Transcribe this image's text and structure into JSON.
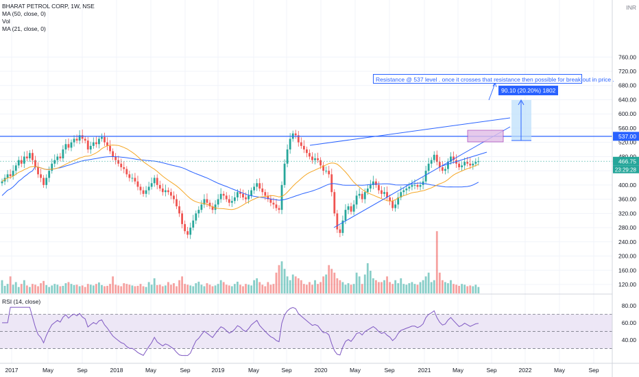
{
  "chart_header": {
    "symbol_line": "BHARAT PETROL CORP, 1W, NSE",
    "ma50_label": "MA (50, close, 0)",
    "vol_label": "Vol",
    "ma21_label": "MA (21, close, 0)",
    "rsi_label": "RSI (14, close)",
    "currency": "INR"
  },
  "annotation": {
    "text": "Resistance @ 537 level . once it crosses that resistance then possible for break out in price .",
    "measure_label": "90.10 (20.20%) 1802"
  },
  "price_labels": {
    "resistance": "537.00",
    "last_price": "466.75",
    "countdown": "23:29:28"
  },
  "colors": {
    "up": "#26a69a",
    "down": "#ef5350",
    "ma50": "#2962ff",
    "ma21": "#f5a623",
    "rsi": "#7e57c2",
    "rsi_band": "#ede7f6",
    "trend": "#2962ff",
    "measure_fill": "#bbdefb",
    "range_box_fill": "#e1bee7",
    "last_price_label": "#26a69a"
  },
  "chart_data": {
    "type": "candlestick",
    "x_axis_labels": [
      "2017",
      "May",
      "Sep",
      "2018",
      "May",
      "Sep",
      "2019",
      "May",
      "Sep",
      "2020",
      "May",
      "Sep",
      "2021",
      "May",
      "Sep",
      "2022",
      "May",
      "Sep"
    ],
    "price_axis": {
      "ticks": [
        120,
        160,
        200,
        240,
        280,
        320,
        360,
        400,
        440,
        480,
        520,
        560,
        600,
        640,
        680,
        720,
        760
      ],
      "ylim": [
        110,
        770
      ]
    },
    "rsi_axis": {
      "ticks": [
        40,
        60,
        80
      ],
      "ylim": [
        15,
        82
      ],
      "band": [
        30,
        70
      ]
    },
    "resistance_level": 537,
    "last_price": 466.75,
    "weekly_close": [
      410,
      420,
      430,
      425,
      440,
      455,
      470,
      460,
      480,
      475,
      490,
      470,
      450,
      430,
      420,
      400,
      420,
      440,
      460,
      470,
      480,
      475,
      500,
      515,
      505,
      520,
      530,
      525,
      540,
      530,
      525,
      500,
      510,
      520,
      515,
      530,
      535,
      520,
      510,
      495,
      480,
      470,
      460,
      450,
      445,
      430,
      420,
      420,
      410,
      395,
      385,
      375,
      385,
      395,
      405,
      420,
      400,
      390,
      380,
      385,
      380,
      370,
      360,
      340,
      320,
      290,
      270,
      260,
      280,
      300,
      320,
      330,
      345,
      360,
      350,
      340,
      330,
      345,
      360,
      375,
      370,
      360,
      350,
      355,
      365,
      380,
      375,
      365,
      360,
      370,
      385,
      395,
      405,
      390,
      380,
      370,
      360,
      350,
      345,
      335,
      330,
      400,
      460,
      500,
      530,
      545,
      540,
      520,
      510,
      500,
      490,
      480,
      470,
      475,
      470,
      455,
      440,
      440,
      430,
      380,
      320,
      275,
      265,
      300,
      330,
      340,
      325,
      345,
      370,
      375,
      360,
      380,
      390,
      400,
      410,
      400,
      385,
      375,
      380,
      365,
      355,
      335,
      345,
      365,
      380,
      385,
      390,
      395,
      400,
      400,
      395,
      400,
      410,
      440,
      460,
      470,
      485,
      465,
      450,
      440,
      445,
      465,
      480,
      470,
      460,
      450,
      455,
      465,
      460,
      455,
      460,
      465,
      466.75
    ],
    "weekly_volume": [
      140,
      125,
      130,
      150,
      128,
      135,
      122,
      130,
      140,
      126,
      122,
      130,
      128,
      124,
      132,
      138,
      127,
      122,
      126,
      130,
      128,
      124,
      125,
      132,
      135,
      130,
      127,
      128,
      124,
      126,
      122,
      130,
      128,
      126,
      130,
      134,
      127,
      124,
      125,
      130,
      150,
      128,
      126,
      124,
      132,
      130,
      128,
      126,
      124,
      125,
      130,
      124,
      122,
      135,
      128,
      145,
      127,
      128,
      124,
      126,
      135,
      128,
      132,
      124,
      140,
      150,
      130,
      128,
      126,
      124,
      132,
      136,
      128,
      124,
      132,
      128,
      124,
      126,
      130,
      140,
      135,
      128,
      126,
      124,
      130,
      136,
      128,
      124,
      130,
      128,
      126,
      140,
      145,
      135,
      128,
      124,
      135,
      128,
      130,
      160,
      180,
      190,
      170,
      150,
      140,
      155,
      150,
      145,
      140,
      130,
      128,
      135,
      128,
      140,
      130,
      135,
      150,
      155,
      180,
      170,
      160,
      145,
      140,
      135,
      128,
      132,
      128,
      130,
      160,
      150,
      130,
      155,
      185,
      165,
      145,
      140,
      135,
      135,
      140,
      150,
      135,
      130,
      140,
      132,
      145,
      130,
      128,
      132,
      135,
      130,
      128,
      135,
      140,
      150,
      160,
      135,
      140,
      270,
      160,
      140,
      135,
      132,
      140,
      130,
      128,
      125,
      130,
      128,
      124,
      126,
      124,
      128,
      122
    ]
  }
}
